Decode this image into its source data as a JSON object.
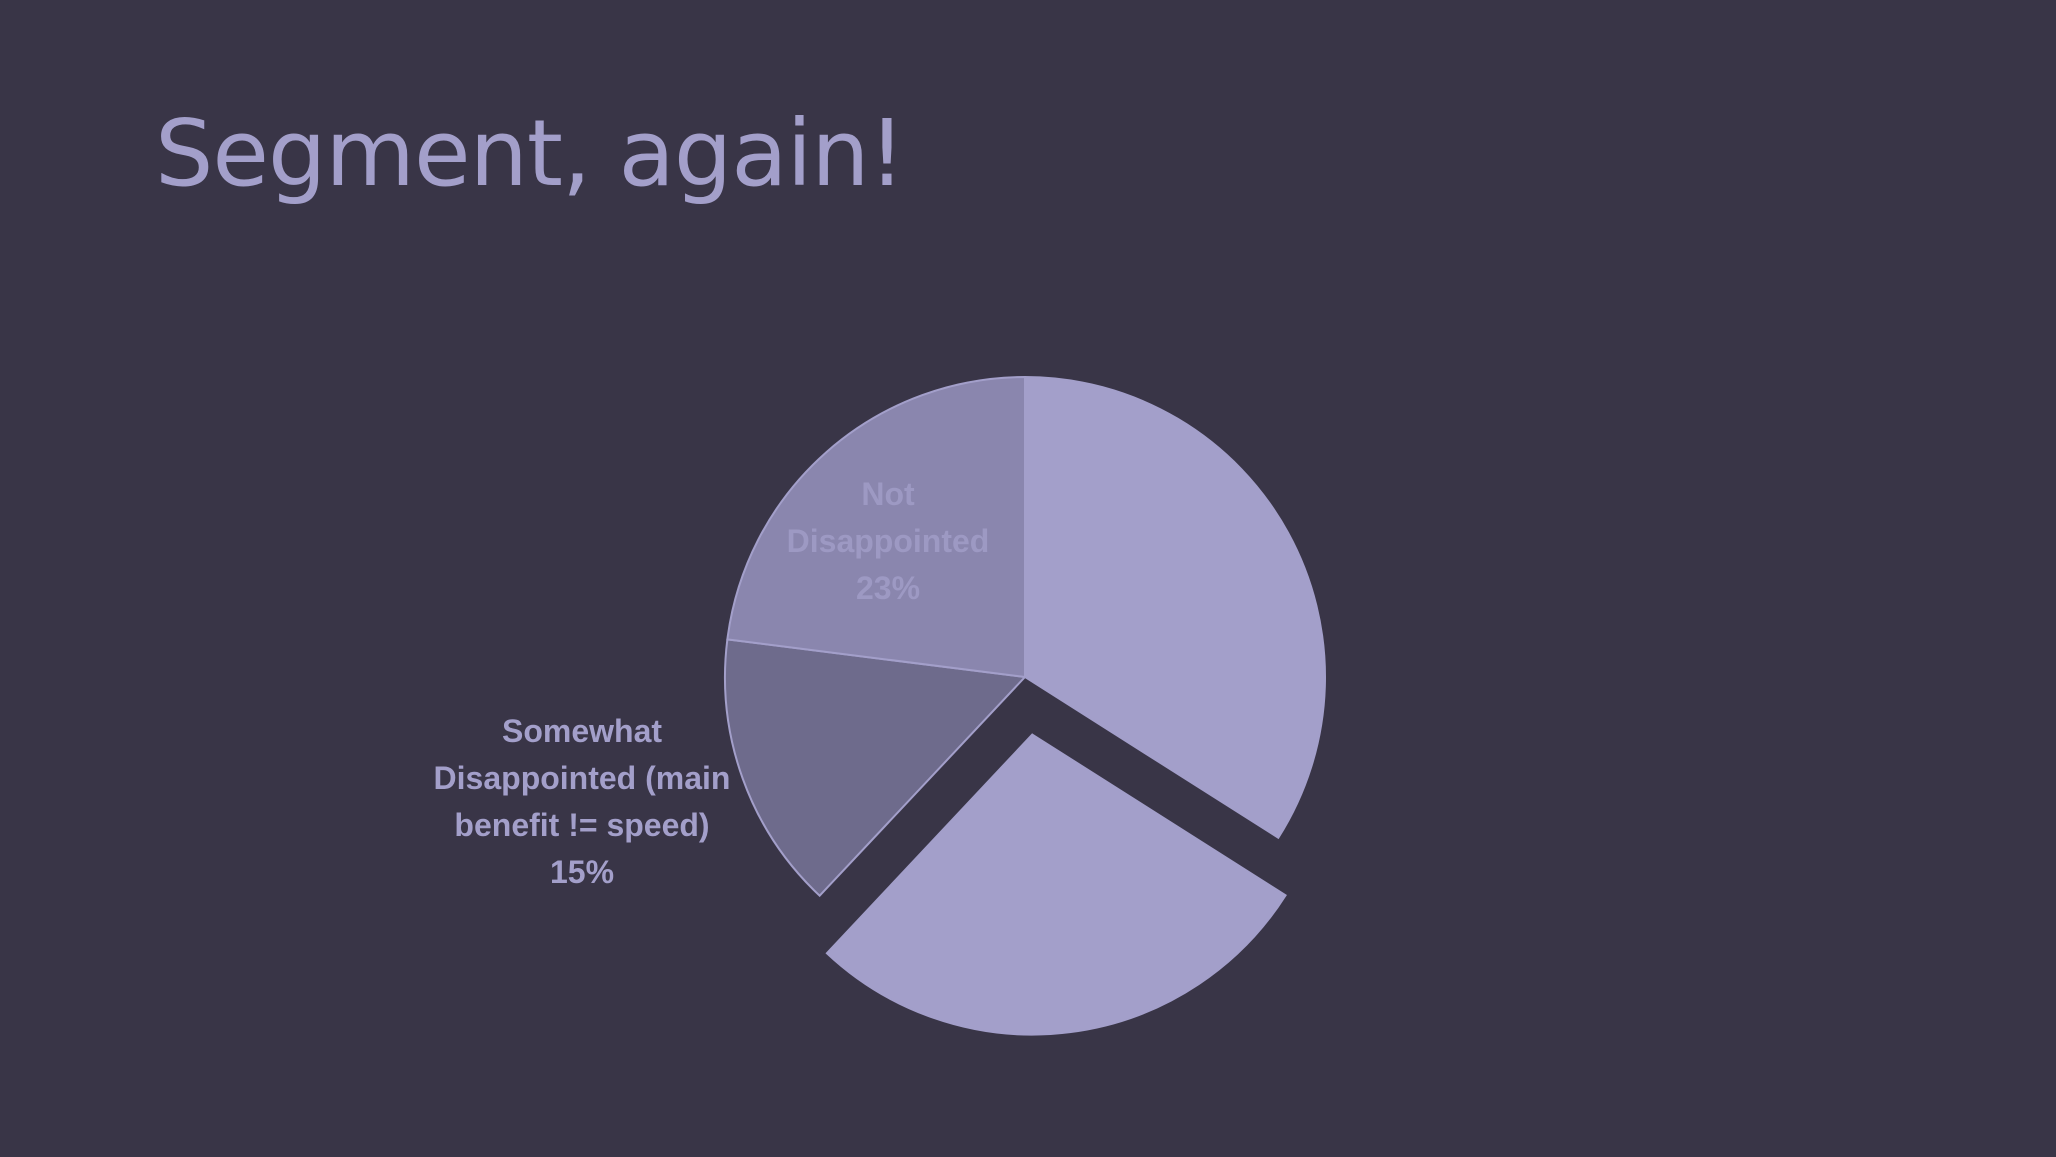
{
  "slide": {
    "title": "Segment, again!",
    "background": "#393547",
    "title_color": "#a39fca"
  },
  "chart_data": {
    "type": "pie",
    "title": "",
    "start_angle_deg": 0,
    "direction": "clockwise",
    "slices": [
      {
        "label": "",
        "value": 34,
        "color": "#a39fca",
        "explode": 0,
        "label_text": []
      },
      {
        "label": "",
        "value": 28,
        "color": "#a39fca",
        "explode": 1,
        "label_text": []
      },
      {
        "label": "Somewhat Disappointed (main benefit != speed)",
        "value": 15,
        "color": "#6e6b8c",
        "explode": 0,
        "label_position": "outside-left",
        "label_text": [
          "Somewhat",
          "Disappointed (main",
          "benefit != speed)",
          "15%"
        ],
        "label_color": "#a39fca"
      },
      {
        "label": "Not Disappointed",
        "value": 23,
        "color": "#8a86ae",
        "explode": 0,
        "label_position": "inside",
        "label_text": [
          "Not",
          "Disappointed",
          "23%"
        ],
        "label_color": "#9d99c3"
      }
    ]
  }
}
